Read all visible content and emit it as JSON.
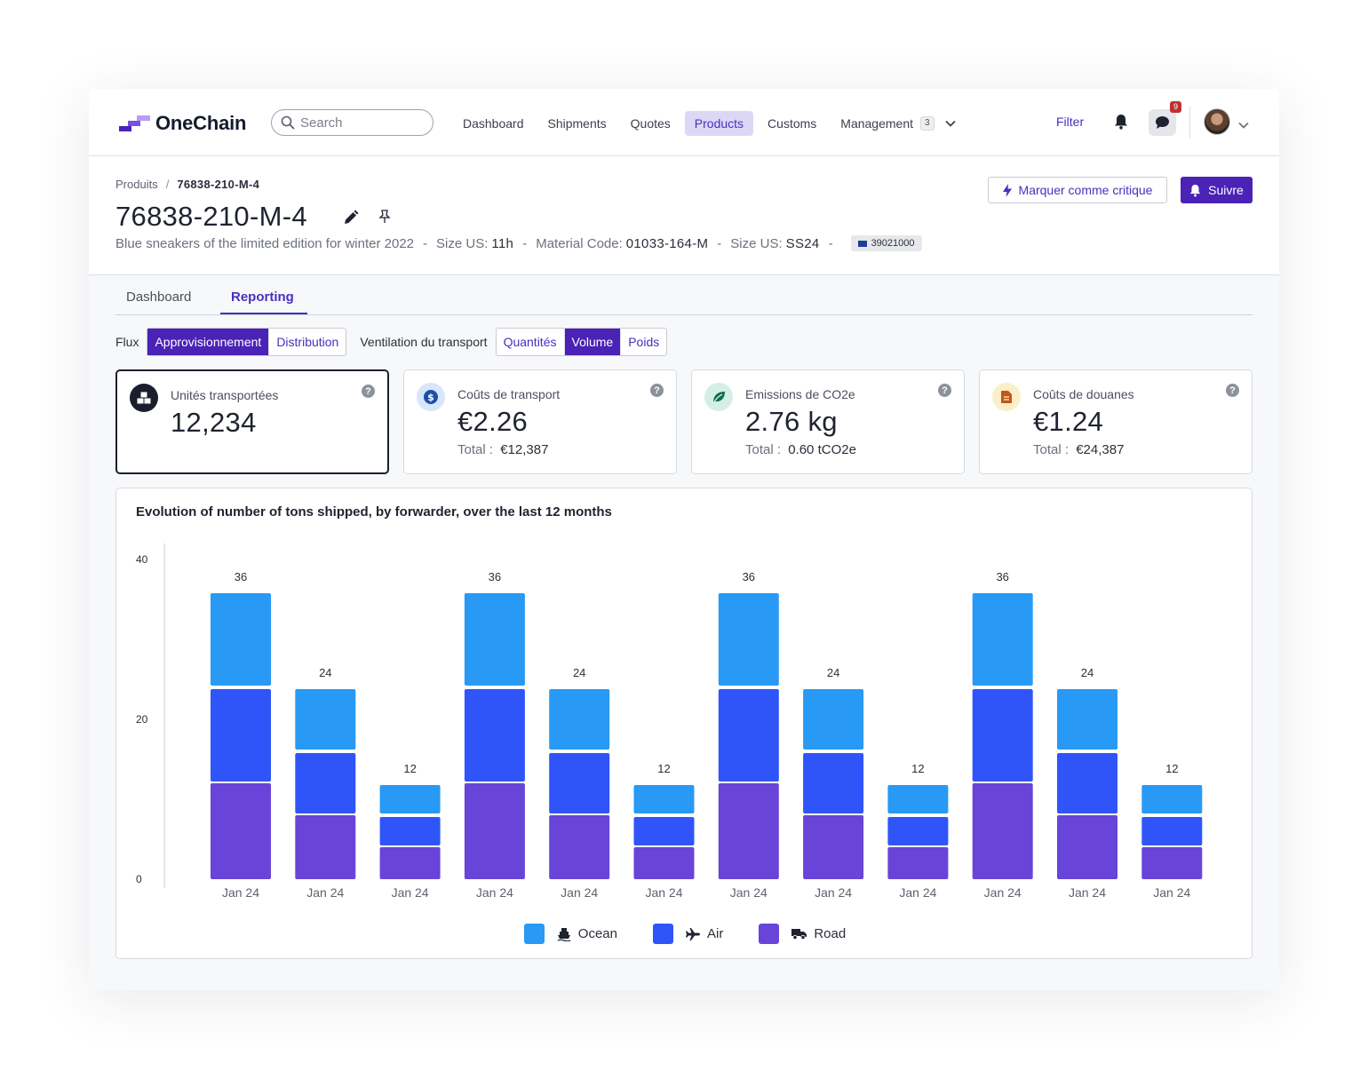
{
  "app": {
    "brand": "OneChain",
    "search": {
      "placeholder": "Search",
      "value": ""
    },
    "nav": [
      {
        "label": "Dashboard"
      },
      {
        "label": "Shipments"
      },
      {
        "label": "Quotes"
      },
      {
        "label": "Products",
        "active": true
      },
      {
        "label": "Customs"
      },
      {
        "label": "Management",
        "badge": "3"
      }
    ],
    "filter_label": "Filter",
    "chat_count": "9"
  },
  "header": {
    "breadcrumb": {
      "parent": "Produits",
      "separator": "/",
      "current": "76838-210-M-4"
    },
    "title": "76838-210-M-4",
    "description": "Blue sneakers of the limited edition for winter 2022",
    "meta": [
      {
        "label": "Size US:",
        "value": "11h"
      },
      {
        "label": "Material Code:",
        "value": "01033-164-M"
      },
      {
        "label": "Size US:",
        "value": "SS24"
      }
    ],
    "hs_code": "39021000",
    "critical_label": "Marquer comme critique",
    "follow_label": "Suivre"
  },
  "tabs": [
    {
      "label": "Dashboard"
    },
    {
      "label": "Reporting",
      "active": true
    }
  ],
  "controls": {
    "flux_label": "Flux",
    "flux_options": [
      "Approvisionnement",
      "Distribution"
    ],
    "flux_selected": "Approvisionnement",
    "ventilation_label": "Ventilation du transport",
    "ventilation_options": [
      "Quantités",
      "Volume",
      "Poids"
    ],
    "ventilation_selected": "Volume"
  },
  "kpis": [
    {
      "label": "Unités transportées",
      "value": "12,234",
      "total_label": "",
      "total_value": "",
      "icon": "boxes-icon",
      "selected": true
    },
    {
      "label": "Coûts de transport",
      "value": "€2.26",
      "total_label": "Total :",
      "total_value": "€12,387",
      "icon": "dollar-icon"
    },
    {
      "label": "Emissions de CO2e",
      "value": "2.76 kg",
      "total_label": "Total :",
      "total_value": "0.60 tCO2e",
      "icon": "leaf-icon"
    },
    {
      "label": "Coûts de douanes",
      "value": "€1.24",
      "total_label": "Total :",
      "total_value": "€24,387",
      "icon": "document-icon"
    }
  ],
  "colors": {
    "accent": "#4b22b6",
    "ocean": "#2899f5",
    "air": "#2f55f9",
    "road": "#6844d8"
  },
  "chart_data": {
    "type": "bar",
    "stacked": true,
    "title": "Evolution of number of tons shipped, by forwarder, over the last 12 months",
    "categories": [
      "Jan 24",
      "Jan 24",
      "Jan 24",
      "Jan 24",
      "Jan 24",
      "Jan 24",
      "Jan 24",
      "Jan 24",
      "Jan 24",
      "Jan 24",
      "Jan 24",
      "Jan 24"
    ],
    "series": [
      {
        "name": "Road",
        "values": [
          12,
          8,
          4,
          12,
          8,
          4,
          12,
          8,
          4,
          12,
          8,
          4
        ]
      },
      {
        "name": "Air",
        "values": [
          12,
          8,
          4,
          12,
          8,
          4,
          12,
          8,
          4,
          12,
          8,
          4
        ]
      },
      {
        "name": "Ocean",
        "values": [
          12,
          8,
          4,
          12,
          8,
          4,
          12,
          8,
          4,
          12,
          8,
          4
        ]
      }
    ],
    "totals": [
      36,
      24,
      12,
      36,
      24,
      12,
      36,
      24,
      12,
      36,
      24,
      12
    ],
    "yticks": [
      0,
      20,
      40
    ],
    "ylim": [
      0,
      40
    ],
    "legend": [
      {
        "name": "Ocean",
        "icon": "ship-icon"
      },
      {
        "name": "Air",
        "icon": "plane-icon"
      },
      {
        "name": "Road",
        "icon": "truck-icon"
      }
    ],
    "legend_position": "bottom-center"
  }
}
